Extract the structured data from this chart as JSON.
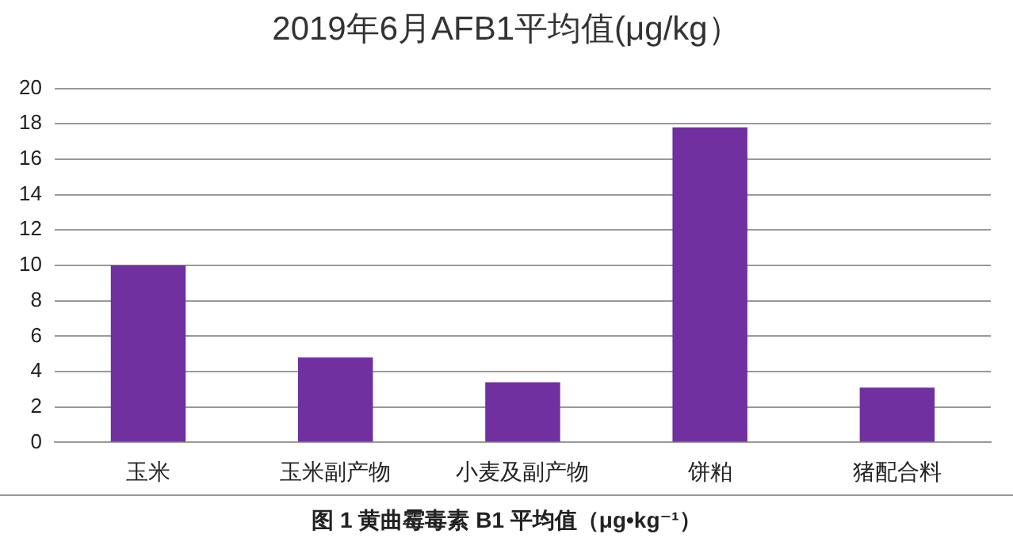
{
  "chart_data": {
    "type": "bar",
    "title": "2019年6月AFB1平均值(μg/kg）",
    "categories": [
      "玉米",
      "玉米副产物",
      "小麦及副产物",
      "饼粕",
      "猪配合料"
    ],
    "values": [
      10.0,
      4.8,
      3.4,
      17.8,
      3.1
    ],
    "color": "#7030a0",
    "ylim": [
      0,
      20
    ],
    "yticks": [
      0,
      2,
      4,
      6,
      8,
      10,
      12,
      14,
      16,
      18,
      20
    ],
    "grid": "y",
    "legend": false,
    "annotations": [
      "图 1 黄曲霉毒素 B1 平均值（μg•kg⁻¹）"
    ]
  }
}
